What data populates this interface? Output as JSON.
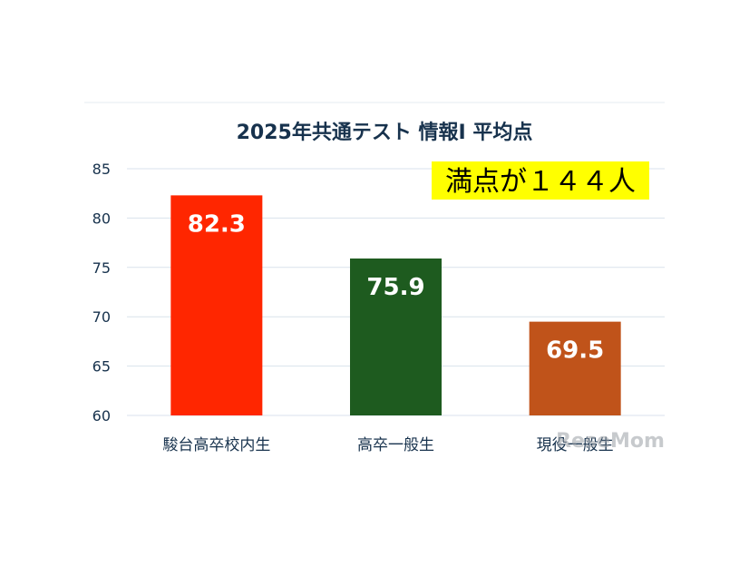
{
  "chart_data": {
    "type": "bar",
    "title": "2025年共通テスト 情報Ⅰ 平均点",
    "categories": [
      "駿台高卒校内生",
      "高卒一般生",
      "現役一般生"
    ],
    "values": [
      82.3,
      75.9,
      69.5
    ],
    "value_labels": [
      "82.3",
      "75.9",
      "69.5"
    ],
    "bar_colors": [
      "#ff2600",
      "#1e5b1f",
      "#c0531a"
    ],
    "ylim": [
      60,
      85
    ],
    "yticks": [
      60,
      65,
      70,
      75,
      80,
      85
    ],
    "ytick_labels": [
      "60",
      "65",
      "70",
      "75",
      "80",
      "85"
    ],
    "grid": true,
    "legend": "none",
    "annotation": {
      "text": "満点が１４４人",
      "background": "#ffff00",
      "position": "top-right"
    },
    "watermark": "ReseMom",
    "colors": {
      "title": "#17324d",
      "axis_text": "#17324d",
      "grid": "#d9e2ec"
    }
  }
}
